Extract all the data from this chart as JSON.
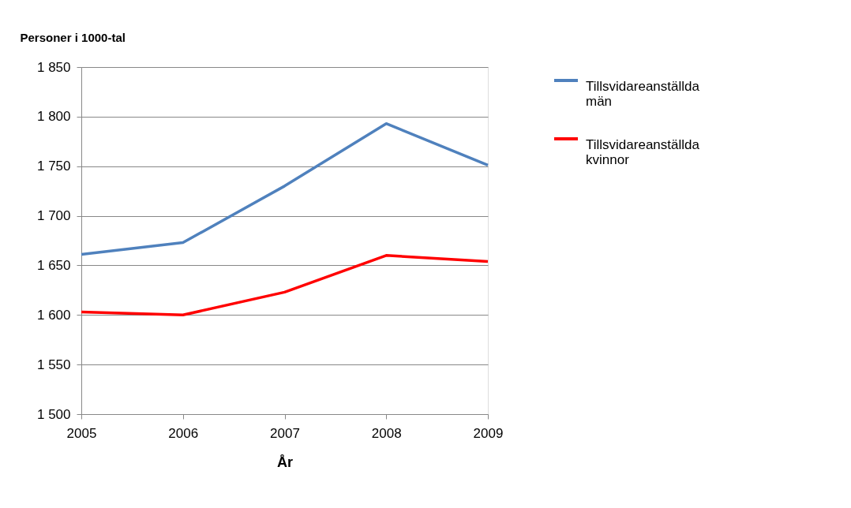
{
  "chart_data": {
    "type": "line",
    "xlabel": "År",
    "ylabel": "Personer i 1000-tal",
    "x": [
      2005,
      2006,
      2007,
      2008,
      2009
    ],
    "series": [
      {
        "name": "Tillsvidareanställda män",
        "color": "#4f81bd",
        "values": [
          1661,
          1673,
          1730,
          1793,
          1751
        ]
      },
      {
        "name": "Tillsvidareanställda kvinnor",
        "color": "#ff0000",
        "values": [
          1603,
          1600,
          1623,
          1660,
          1654
        ]
      }
    ],
    "xlim": [
      2005,
      2009
    ],
    "xticks": [
      2005,
      2006,
      2007,
      2008,
      2009
    ],
    "ylim": [
      1500,
      1850
    ],
    "yticks": [
      {
        "value": 1500,
        "label": "1 500"
      },
      {
        "value": 1550,
        "label": "1 550"
      },
      {
        "value": 1600,
        "label": "1 600"
      },
      {
        "value": 1650,
        "label": "1 650"
      },
      {
        "value": 1700,
        "label": "1 700"
      },
      {
        "value": 1750,
        "label": "1 750"
      },
      {
        "value": 1800,
        "label": "1 800"
      },
      {
        "value": 1850,
        "label": "1 850"
      }
    ],
    "grid": "y",
    "legend": "right",
    "marker": "none",
    "line_style": "solid"
  }
}
